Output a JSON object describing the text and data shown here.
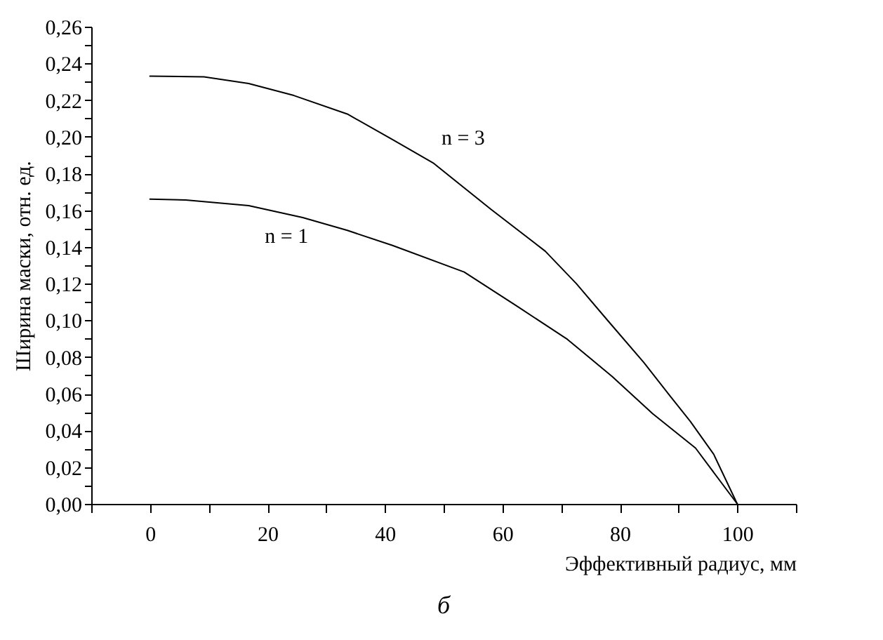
{
  "chart_data": {
    "type": "line",
    "xlabel": "Эффективный радиус, мм",
    "ylabel": "Ширина маски, отн. ед.",
    "annotations": [
      "б",
      {
        "text": "n = 3",
        "x": 48.2,
        "y": 0.1858
      },
      {
        "text": "n = 1",
        "x": 26,
        "y": 0.156
      }
    ],
    "series": [
      {
        "color": "#000000",
        "x": [
          0,
          9.2,
          16.8,
          24.5,
          33.6,
          41.3,
          48.2,
          58.1,
          67.3,
          72.6,
          78,
          84.1,
          88.5,
          92,
          96,
          100
        ],
        "values": [
          0.233,
          0.2327,
          0.229,
          0.2225,
          0.2124,
          0.1985,
          0.1858,
          0.1604,
          0.1377,
          0.12,
          0.0997,
          0.077,
          0.059,
          0.045,
          0.027,
          0
        ]
      },
      {
        "color": "#000000",
        "x": [
          0,
          6.1,
          16.8,
          26,
          33.6,
          41.3,
          53.5,
          62.7,
          71.1,
          78.7,
          85.6,
          92.9,
          100
        ],
        "values": [
          0.166,
          0.1656,
          0.1625,
          0.156,
          0.149,
          0.1408,
          0.1263,
          0.1073,
          0.0896,
          0.0694,
          0.0491,
          0.0304,
          0
        ]
      }
    ],
    "xlim": [
      -10,
      110
    ],
    "xticks": [
      {
        "value": -10,
        "label": null
      },
      0,
      {
        "value": 10,
        "label": null
      },
      20,
      {
        "value": 30,
        "label": null
      },
      40,
      {
        "value": 50,
        "label": null
      },
      60,
      {
        "value": 70,
        "label": null
      },
      80,
      {
        "value": 90,
        "label": null
      },
      100,
      {
        "value": 110,
        "label": null
      }
    ],
    "ylim": [
      0,
      0.26
    ],
    "yticks": [
      {
        "value": 0,
        "label": "0,00"
      },
      {
        "value": 0.01,
        "label": null
      },
      {
        "value": 0.02,
        "label": "0,02"
      },
      {
        "value": 0.03,
        "label": null
      },
      {
        "value": 0.04,
        "label": "0,04"
      },
      {
        "value": 0.05,
        "label": null
      },
      {
        "value": 0.06,
        "label": "0,06"
      },
      {
        "value": 0.07,
        "label": null
      },
      {
        "value": 0.08,
        "label": "0,08"
      },
      {
        "value": 0.09,
        "label": null
      },
      {
        "value": 0.1,
        "label": "0,10"
      },
      {
        "value": 0.11,
        "label": null
      },
      {
        "value": 0.12,
        "label": "0,12"
      },
      {
        "value": 0.13,
        "label": null
      },
      {
        "value": 0.14,
        "label": "0,14"
      },
      {
        "value": 0.15,
        "label": null
      },
      {
        "value": 0.16,
        "label": "0,16"
      },
      {
        "value": 0.17,
        "label": null
      },
      {
        "value": 0.18,
        "label": "0,18"
      },
      {
        "value": 0.19,
        "label": null
      },
      {
        "value": 0.2,
        "label": "0,20"
      },
      {
        "value": 0.21,
        "label": null
      },
      {
        "value": 0.22,
        "label": "0,22"
      },
      {
        "value": 0.23,
        "label": null
      },
      {
        "value": 0.24,
        "label": "0,24"
      },
      {
        "value": 0.25,
        "label": null
      },
      {
        "value": 0.26,
        "label": "0,26"
      }
    ],
    "grid": false,
    "legend": false,
    "marker": "none",
    "line_style": "solid"
  }
}
